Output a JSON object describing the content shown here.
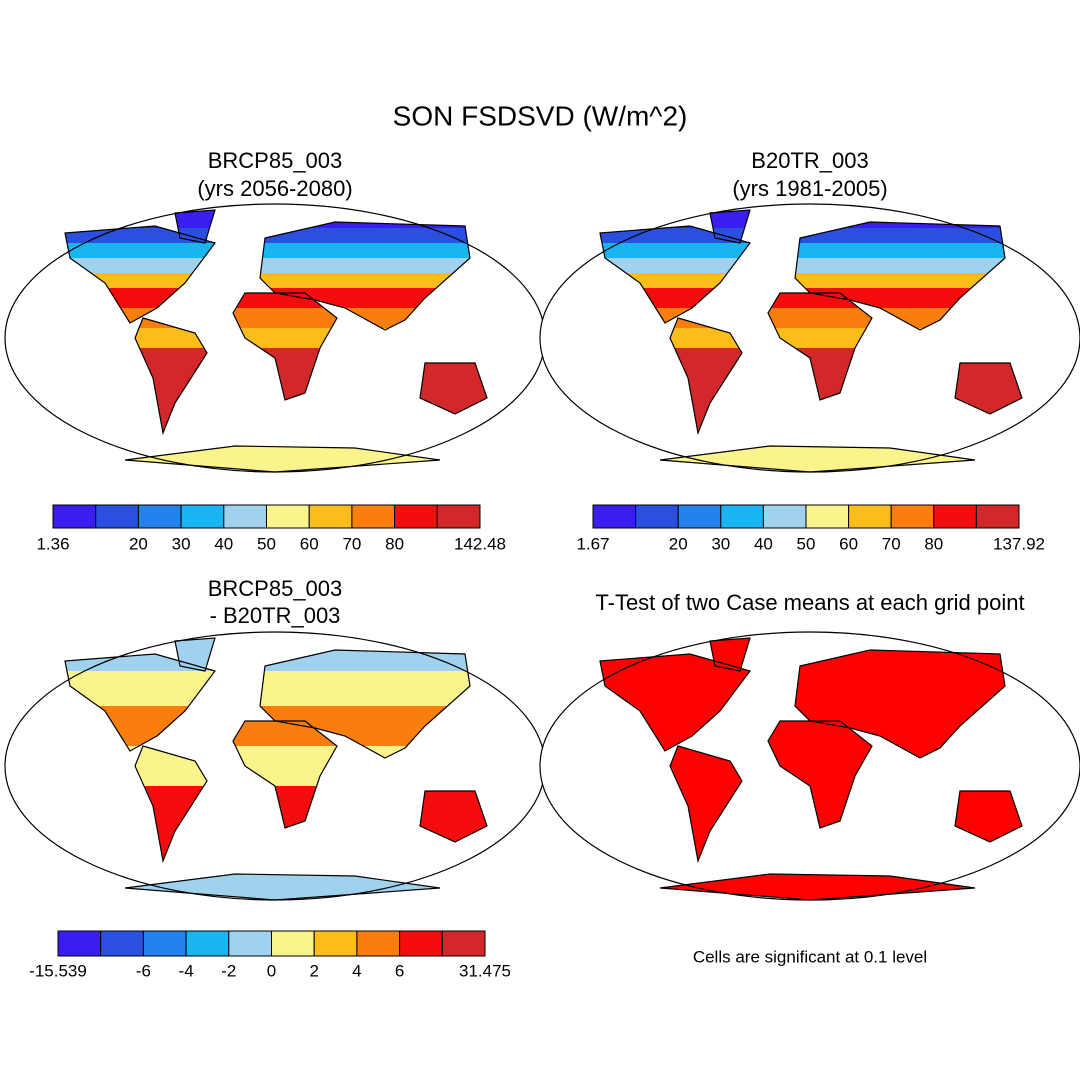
{
  "title": "SON FSDSVD (W/m^2)",
  "panels": [
    {
      "title_lines": [
        "BRCP85_003",
        "(yrs 2056-2080)"
      ],
      "colorbar": {
        "colors": [
          "#3a1ef0",
          "#2b50e0",
          "#2382ee",
          "#19b4f2",
          "#a0d2ee",
          "#fbf48c",
          "#fbbd1c",
          "#f97e0e",
          "#f50c0c",
          "#d2282a"
        ],
        "levels": [
          1.36,
          null,
          20,
          30,
          40,
          50,
          60,
          70,
          80,
          null,
          142.48
        ]
      }
    },
    {
      "title_lines": [
        "B20TR_003",
        "(yrs 1981-2005)"
      ],
      "colorbar": {
        "colors": [
          "#3a1ef0",
          "#2b50e0",
          "#2382ee",
          "#19b4f2",
          "#a0d2ee",
          "#fbf48c",
          "#fbbd1c",
          "#f97e0e",
          "#f50c0c",
          "#d2282a"
        ],
        "levels": [
          1.67,
          null,
          20,
          30,
          40,
          50,
          60,
          70,
          80,
          null,
          137.92
        ]
      }
    },
    {
      "title_lines": [
        "BRCP85_003",
        "- B20TR_003"
      ],
      "colorbar": {
        "colors": [
          "#3a1ef0",
          "#2b50e0",
          "#2382ee",
          "#19b4f2",
          "#a0d2ee",
          "#fbf48c",
          "#fbbd1c",
          "#f97e0e",
          "#f50c0c",
          "#d2282a"
        ],
        "levels": [
          -15.539,
          null,
          -6,
          -4,
          -2,
          0,
          2,
          4,
          6,
          null,
          31.475
        ]
      }
    },
    {
      "title_lines": [
        "T-Test of two Case means at each grid point"
      ],
      "note": "Cells are significant at 0.1 level",
      "fill_color": "#ff0000"
    }
  ]
}
